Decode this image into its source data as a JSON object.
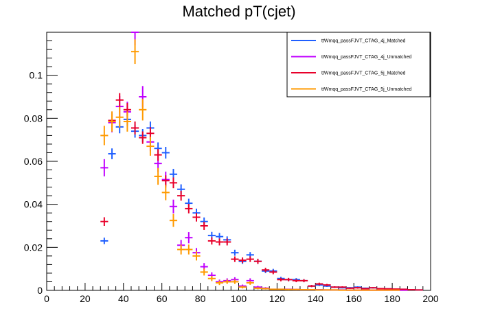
{
  "chart_data": {
    "type": "scatter",
    "title": "Matched pT(cjet)",
    "xlabel": "",
    "ylabel": "",
    "xlim": [
      0,
      200
    ],
    "ylim": [
      0,
      0.12
    ],
    "x_ticks": [
      0,
      20,
      40,
      60,
      80,
      100,
      120,
      140,
      160,
      180,
      200
    ],
    "x_tick_labels": [
      "0",
      "20",
      "40",
      "60",
      "80",
      "100",
      "120",
      "140",
      "160",
      "180",
      "200"
    ],
    "y_ticks": [
      0,
      0.02,
      0.04,
      0.06,
      0.08,
      0.1
    ],
    "y_tick_labels": [
      "0",
      "0.02",
      "0.04",
      "0.06",
      "0.08",
      "0.1"
    ],
    "grid": false,
    "legend_position": "top-right",
    "bin_width": 4,
    "series": [
      {
        "name": "ttWmqq_passFJVT_CTAG_4j_Matched",
        "color": "#1f5fff",
        "x": [
          30,
          34,
          38,
          42,
          46,
          50,
          54,
          58,
          62,
          66,
          70,
          74,
          78,
          82,
          86,
          90,
          94,
          98,
          102,
          106,
          110,
          114,
          118,
          122,
          126,
          130,
          134,
          138,
          142,
          146,
          150,
          154,
          158,
          162,
          166,
          170,
          174,
          178,
          182,
          186,
          190,
          194
        ],
        "values": [
          0.023,
          0.0635,
          0.076,
          0.0795,
          0.074,
          0.072,
          0.0755,
          0.066,
          0.064,
          0.054,
          0.047,
          0.0405,
          0.036,
          0.032,
          0.0255,
          0.025,
          0.0235,
          0.0175,
          0.0135,
          0.0165,
          0.0135,
          0.009,
          0.009,
          0.0055,
          0.005,
          0.005,
          0.0045,
          0.002,
          0.0025,
          0.002,
          0.0015,
          0.0012,
          0.0012,
          0.0015,
          0.001,
          0.0012,
          0.0008,
          0.0007,
          0.0005,
          0.0005,
          0.0003,
          0.0002
        ],
        "errors": [
          0.0015,
          0.0025,
          0.003,
          0.003,
          0.003,
          0.003,
          0.003,
          0.0028,
          0.0027,
          0.0025,
          0.0023,
          0.0021,
          0.002,
          0.0019,
          0.0017,
          0.0017,
          0.0016,
          0.0014,
          0.0012,
          0.0013,
          0.0012,
          0.001,
          0.001,
          0.0008,
          0.0007,
          0.0007,
          0.0007,
          0.0005,
          0.0005,
          0.0004,
          0.0004,
          0.0003,
          0.0003,
          0.0004,
          0.0003,
          0.0003,
          0.0003,
          0.0002,
          0.0002,
          0.0002,
          0.0002,
          0.0001
        ]
      },
      {
        "name": "ttWmqq_passFJVT_CTAG_4j_Unmatched",
        "color": "#c000ff",
        "x": [
          30,
          34,
          38,
          42,
          46,
          50,
          54,
          58,
          62,
          66,
          70,
          74,
          78,
          82,
          86,
          90,
          94,
          98,
          102,
          106,
          110,
          114,
          118,
          122,
          126,
          130,
          134,
          138,
          142,
          146,
          150,
          154,
          158,
          162,
          166,
          170,
          174,
          178,
          182,
          186,
          190,
          194
        ],
        "values": [
          0.057,
          0.078,
          0.0855,
          0.083,
          0.12,
          0.09,
          0.069,
          0.059,
          0.0515,
          0.039,
          0.021,
          0.0245,
          0.0175,
          0.011,
          0.007,
          0.004,
          0.0045,
          0.005,
          0.002,
          0.0045,
          0.0015,
          0.001,
          0.0005,
          0.0005,
          0.0005,
          0.0004,
          0.0003,
          0.0003,
          0.0003,
          0.0002,
          0.0002,
          0.0002,
          0.0001,
          0.0001,
          0.0001,
          0.0001,
          0.0001,
          0.0001,
          0.0001,
          0.0001,
          0.0,
          0.0
        ],
        "errors": [
          0.004,
          0.0045,
          0.0048,
          0.0047,
          0.006,
          0.005,
          0.0043,
          0.004,
          0.0037,
          0.0032,
          0.0024,
          0.0026,
          0.0022,
          0.0017,
          0.0014,
          0.001,
          0.0011,
          0.0011,
          0.0007,
          0.0011,
          0.0006,
          0.0005,
          0.0003,
          0.0003,
          0.0003,
          0.0003,
          0.0002,
          0.0002,
          0.0002,
          0.0002,
          0.0002,
          0.0002,
          0.0001,
          0.0001,
          0.0001,
          0.0001,
          0.0001,
          0.0001,
          0.0001,
          0.0001,
          0.0,
          0.0
        ]
      },
      {
        "name": "ttWmqq_passFJVT_CTAG_5j_Matched",
        "color": "#e8002a",
        "x": [
          30,
          34,
          38,
          42,
          46,
          50,
          54,
          58,
          62,
          66,
          70,
          74,
          78,
          82,
          86,
          90,
          94,
          98,
          102,
          106,
          110,
          114,
          118,
          122,
          126,
          130,
          134,
          138,
          142,
          146,
          150,
          154,
          158,
          162,
          166,
          170,
          174,
          178,
          182,
          186,
          190,
          194
        ],
        "values": [
          0.032,
          0.079,
          0.0885,
          0.084,
          0.0755,
          0.071,
          0.073,
          0.063,
          0.051,
          0.05,
          0.044,
          0.038,
          0.034,
          0.03,
          0.023,
          0.0225,
          0.0225,
          0.0145,
          0.014,
          0.0145,
          0.0135,
          0.0095,
          0.0085,
          0.005,
          0.005,
          0.0045,
          0.0045,
          0.002,
          0.003,
          0.0025,
          0.0015,
          0.0015,
          0.001,
          0.0012,
          0.0008,
          0.0012,
          0.0008,
          0.0007,
          0.0006,
          0.0005,
          0.0003,
          0.0002
        ],
        "errors": [
          0.002,
          0.003,
          0.0032,
          0.0031,
          0.003,
          0.0029,
          0.0029,
          0.0027,
          0.0025,
          0.0025,
          0.0023,
          0.0022,
          0.002,
          0.0019,
          0.0017,
          0.0016,
          0.0016,
          0.0013,
          0.0013,
          0.0013,
          0.0012,
          0.001,
          0.001,
          0.0008,
          0.0008,
          0.0007,
          0.0007,
          0.0005,
          0.0006,
          0.0005,
          0.0004,
          0.0004,
          0.0003,
          0.0004,
          0.0003,
          0.0003,
          0.0003,
          0.0002,
          0.0002,
          0.0002,
          0.0002,
          0.0001
        ]
      },
      {
        "name": "ttWmqq_passFJVT_CTAG_5j_Unmatched",
        "color": "#ff9a00",
        "x": [
          30,
          34,
          38,
          42,
          46,
          50,
          54,
          58,
          62,
          66,
          70,
          74,
          78,
          82,
          86,
          90,
          94,
          98,
          102,
          106,
          110,
          114,
          118,
          122,
          126,
          130,
          134,
          138,
          142,
          146,
          150,
          154,
          158,
          162,
          166,
          170,
          174,
          178,
          182,
          186,
          190,
          194
        ],
        "values": [
          0.072,
          0.0785,
          0.0805,
          0.0785,
          0.111,
          0.084,
          0.067,
          0.053,
          0.0455,
          0.0325,
          0.019,
          0.019,
          0.016,
          0.0085,
          0.0055,
          0.0035,
          0.004,
          0.004,
          0.0015,
          0.0035,
          0.001,
          0.0008,
          0.0005,
          0.0005,
          0.0004,
          0.0004,
          0.0003,
          0.0003,
          0.0002,
          0.0002,
          0.0002,
          0.0001,
          0.0001,
          0.0001,
          0.0001,
          0.0001,
          0.0001,
          0.0001,
          0.0001,
          0.0,
          0.0,
          0.0
        ],
        "errors": [
          0.0045,
          0.0047,
          0.0048,
          0.0047,
          0.0057,
          0.005,
          0.0044,
          0.0039,
          0.0036,
          0.003,
          0.0023,
          0.0023,
          0.0021,
          0.0016,
          0.0012,
          0.001,
          0.001,
          0.001,
          0.0006,
          0.0009,
          0.0005,
          0.0004,
          0.0003,
          0.0003,
          0.0003,
          0.0003,
          0.0002,
          0.0002,
          0.0002,
          0.0002,
          0.0002,
          0.0001,
          0.0001,
          0.0001,
          0.0001,
          0.0001,
          0.0001,
          0.0001,
          0.0001,
          0.0,
          0.0,
          0.0
        ]
      }
    ]
  }
}
